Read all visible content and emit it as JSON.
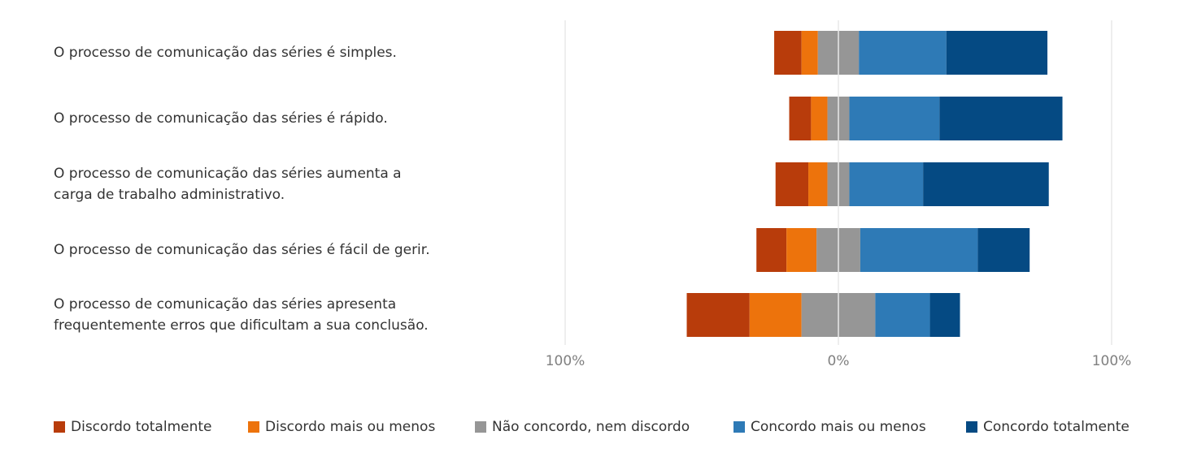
{
  "chart_data": {
    "type": "bar",
    "subtype": "diverging-stacked-horizontal",
    "title": "",
    "xlabel": "",
    "ylabel": "",
    "xlim": [
      -100,
      100
    ],
    "x_ticks": [
      {
        "value": -100,
        "label": "100%"
      },
      {
        "value": 0,
        "label": "0%"
      },
      {
        "value": 100,
        "label": "100%"
      }
    ],
    "grid": true,
    "legend_position": "bottom",
    "categories": [
      [
        "O processo de comunicação das séries é simples."
      ],
      [
        "O processo de comunicação das séries é rápido."
      ],
      [
        "O processo de comunicação das séries aumenta a",
        "carga de trabalho administrativo."
      ],
      [
        "O processo de comunicação das séries é fácil de gerir."
      ],
      [
        "O processo de comunicação das séries apresenta",
        "frequentemente erros que dificultam a sua conclusão."
      ]
    ],
    "series": [
      {
        "name": "Discordo totalmente",
        "color": "#B83C0B",
        "values": [
          10,
          8,
          12,
          11,
          23
        ]
      },
      {
        "name": "Discordo mais ou menos",
        "color": "#ED730C",
        "values": [
          6,
          6,
          7,
          11,
          19
        ]
      },
      {
        "name": "Não concordo, nem discordo",
        "color": "#969696",
        "values": [
          15,
          8,
          8,
          16,
          27
        ]
      },
      {
        "name": "Concordo mais ou menos",
        "color": "#2E7AB6",
        "values": [
          32,
          33,
          27,
          43,
          20
        ]
      },
      {
        "name": "Concordo totalmente",
        "color": "#054A83",
        "values": [
          37,
          45,
          46,
          19,
          11
        ]
      }
    ]
  },
  "colors": {
    "gridline": "#DDDDDD",
    "zeroline": "#D0D0D0",
    "text": "#333333",
    "tick_text": "#808080"
  }
}
